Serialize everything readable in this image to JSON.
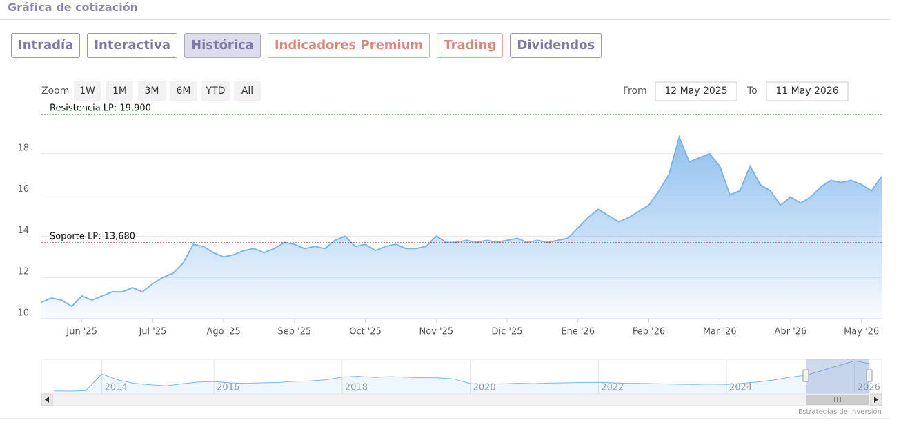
{
  "header": {
    "title": "Gráfica de cotización"
  },
  "tabs": [
    {
      "label": "Intradía",
      "color": "#7d78a8"
    },
    {
      "label": "Interactiva",
      "color": "#7d78a8"
    },
    {
      "label": "Histórica",
      "color": "#7d78a8"
    },
    {
      "label": "Indicadores Premium",
      "color": "#e0877b"
    },
    {
      "label": "Trading",
      "color": "#e0877b"
    },
    {
      "label": "Dividendos",
      "color": "#7d78a8"
    }
  ],
  "active_tab": 2,
  "chart_data": {
    "type": "area",
    "zoom_label": "Zoom",
    "zoom_buttons": [
      "1W",
      "1M",
      "3M",
      "6M",
      "YTD",
      "All"
    ],
    "range_selector": {
      "from_label": "From",
      "from": "12 May 2025",
      "to_label": "To",
      "to": "11 May 2026"
    },
    "categories": [
      null,
      null,
      null,
      null,
      "Jun '25",
      null,
      null,
      null,
      null,
      null,
      null,
      "Jul '25",
      null,
      null,
      null,
      null,
      null,
      null,
      "Ago '25",
      null,
      null,
      null,
      null,
      null,
      null,
      "Sep '25",
      null,
      null,
      null,
      null,
      null,
      null,
      "Oct '25",
      null,
      null,
      null,
      null,
      null,
      null,
      "Nov '25",
      null,
      null,
      null,
      null,
      null,
      null,
      "Dic '25",
      null,
      null,
      null,
      null,
      null,
      null,
      "Ene '26",
      null,
      null,
      null,
      null,
      null,
      null,
      "Feb '26",
      null,
      null,
      null,
      null,
      null,
      null,
      "Mar '26",
      null,
      null,
      null,
      null,
      null,
      null,
      "Abr '26",
      null,
      null,
      null,
      null,
      null,
      null,
      "May '26",
      null,
      null
    ],
    "values": [
      10.8,
      11.0,
      10.9,
      10.6,
      11.1,
      10.9,
      11.1,
      11.3,
      11.3,
      11.5,
      11.3,
      11.7,
      12.0,
      12.2,
      12.7,
      13.6,
      13.5,
      13.2,
      13.0,
      13.1,
      13.3,
      13.4,
      13.2,
      13.4,
      13.7,
      13.6,
      13.4,
      13.5,
      13.4,
      13.8,
      14.0,
      13.5,
      13.6,
      13.3,
      13.5,
      13.6,
      13.4,
      13.4,
      13.5,
      14.0,
      13.7,
      13.7,
      13.8,
      13.7,
      13.8,
      13.7,
      13.8,
      13.9,
      13.7,
      13.8,
      13.7,
      13.8,
      13.9,
      14.4,
      14.9,
      15.3,
      15.0,
      14.7,
      14.9,
      15.2,
      15.5,
      16.2,
      17.0,
      18.8,
      17.6,
      17.8,
      18.0,
      17.4,
      16.0,
      16.2,
      17.4,
      16.5,
      16.2,
      15.5,
      15.9,
      15.6,
      15.9,
      16.4,
      16.7,
      16.6,
      16.7,
      16.5,
      16.2,
      16.9
    ],
    "color": "#7cb5ec",
    "ylim": [
      10,
      20.4
    ],
    "yticks": [
      10,
      12,
      14,
      16,
      18
    ],
    "grid": true,
    "annotations": [
      {
        "label": "Resistencia LP: 19,900",
        "value": 19.9,
        "color": "#2e7d32"
      },
      {
        "label": "Soporte LP: 13,680",
        "value": 13.68,
        "color": "#8b1a1a"
      }
    ],
    "navigator": {
      "categories": [
        null,
        null,
        null,
        "2014",
        null,
        null,
        null,
        null,
        null,
        null,
        "2016",
        null,
        null,
        null,
        null,
        null,
        null,
        null,
        "2018",
        null,
        null,
        null,
        null,
        null,
        null,
        null,
        "2020",
        null,
        null,
        null,
        null,
        null,
        null,
        null,
        "2022",
        null,
        null,
        null,
        null,
        null,
        null,
        null,
        "2024",
        null,
        null,
        null,
        null,
        null,
        null,
        null,
        "2026",
        null
      ],
      "values": [
        2.8,
        2.7,
        2.9,
        11.6,
        8.5,
        6.8,
        6.0,
        5.5,
        6.5,
        7.4,
        7.7,
        7.0,
        6.8,
        7.0,
        7.2,
        7.8,
        8.0,
        8.6,
        10.0,
        10.4,
        9.8,
        10.2,
        9.9,
        9.6,
        9.6,
        9.0,
        6.6,
        6.4,
        6.5,
        6.8,
        6.6,
        6.9,
        7.0,
        7.2,
        7.3,
        7.0,
        6.8,
        6.7,
        6.5,
        6.3,
        6.2,
        6.4,
        6.2,
        6.8,
        7.5,
        8.5,
        10.0,
        11.0,
        13.5,
        16.0,
        18.5,
        16.9
      ],
      "color": "#7cb5ec"
    },
    "credits": "Estrategias de Inversión"
  }
}
